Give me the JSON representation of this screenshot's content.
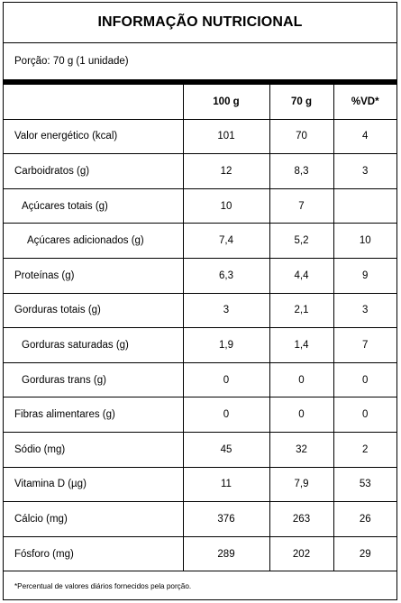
{
  "title": "INFORMAÇÃO NUTRICIONAL",
  "portion": "Porção: 70 g (1 unidade)",
  "headers": [
    "",
    "100 g",
    "70 g",
    "%VD*"
  ],
  "rows": [
    {
      "label": "Valor energético (kcal)",
      "indent": 0,
      "v100": "101",
      "v70": "70",
      "vd": "4"
    },
    {
      "label": "Carboidratos (g)",
      "indent": 0,
      "v100": "12",
      "v70": "8,3",
      "vd": "3"
    },
    {
      "label": "Açúcares totais (g)",
      "indent": 1,
      "v100": "10",
      "v70": "7",
      "vd": ""
    },
    {
      "label": "Açúcares adicionados (g)",
      "indent": 2,
      "v100": "7,4",
      "v70": "5,2",
      "vd": "10"
    },
    {
      "label": "Proteínas (g)",
      "indent": 0,
      "v100": "6,3",
      "v70": "4,4",
      "vd": "9"
    },
    {
      "label": "Gorduras totais (g)",
      "indent": 0,
      "v100": "3",
      "v70": "2,1",
      "vd": "3"
    },
    {
      "label": "Gorduras saturadas (g)",
      "indent": 1,
      "v100": "1,9",
      "v70": "1,4",
      "vd": "7"
    },
    {
      "label": "Gorduras trans (g)",
      "indent": 1,
      "v100": "0",
      "v70": "0",
      "vd": "0"
    },
    {
      "label": "Fibras alimentares (g)",
      "indent": 0,
      "v100": "0",
      "v70": "0",
      "vd": "0"
    },
    {
      "label": "Sódio (mg)",
      "indent": 0,
      "v100": "45",
      "v70": "32",
      "vd": "2"
    },
    {
      "label": "Vitamina D (µg)",
      "indent": 0,
      "v100": "11",
      "v70": "7,9",
      "vd": "53"
    },
    {
      "label": "Cálcio (mg)",
      "indent": 0,
      "v100": "376",
      "v70": "263",
      "vd": "26"
    },
    {
      "label": "Fósforo (mg)",
      "indent": 0,
      "v100": "289",
      "v70": "202",
      "vd": "29"
    }
  ],
  "footnote": "*Percentual de valores diários fornecidos pela porção."
}
